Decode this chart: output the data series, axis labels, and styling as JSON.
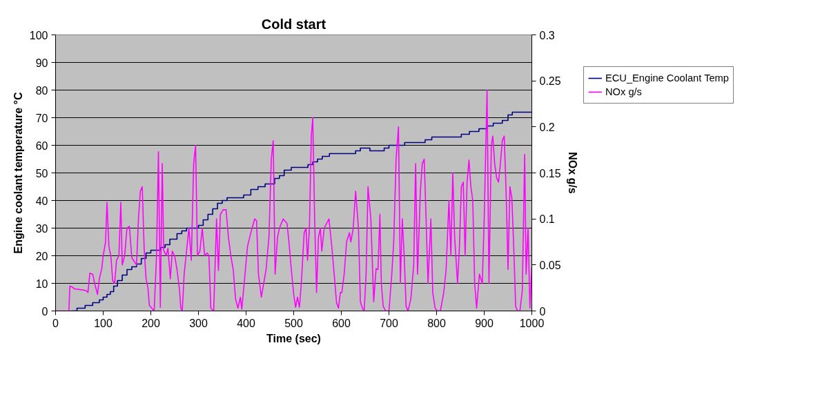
{
  "chart_data": {
    "type": "line",
    "title": "Cold start",
    "xlabel": "Time (sec)",
    "ylabel": "Engine coolant temperature °C",
    "y2label": "NOx g/s",
    "xlim": [
      0,
      1000
    ],
    "xticks": [
      0,
      100,
      200,
      300,
      400,
      500,
      600,
      700,
      800,
      900,
      1000
    ],
    "ylim": [
      0,
      100
    ],
    "yticks": [
      0,
      10,
      20,
      30,
      40,
      50,
      60,
      70,
      80,
      90,
      100
    ],
    "y2lim": [
      0,
      0.3
    ],
    "y2ticks": [
      0,
      0.05,
      0.1,
      0.15,
      0.2,
      0.25,
      0.3
    ],
    "grid": "y",
    "legend": "right",
    "series": [
      {
        "name": "ECU_Engine Coolant Temp",
        "color": "#000080",
        "type": "step",
        "x": [
          33,
          45,
          62,
          78,
          92,
          100,
          108,
          115,
          122,
          130,
          140,
          150,
          160,
          170,
          180,
          190,
          200,
          220,
          230,
          240,
          255,
          265,
          275,
          300,
          310,
          320,
          330,
          340,
          350,
          360,
          395,
          410,
          425,
          440,
          460,
          470,
          480,
          495,
          530,
          540,
          550,
          560,
          575,
          630,
          640,
          660,
          690,
          700,
          733,
          776,
          790,
          852,
          869,
          889,
          907,
          919,
          938,
          950,
          959,
          1000
        ],
        "values": [
          0,
          1,
          2,
          3,
          4,
          5,
          6,
          7,
          9,
          11,
          13,
          15,
          16,
          17,
          19,
          21,
          22,
          23,
          24,
          26,
          28,
          29,
          30,
          31,
          33,
          35,
          37,
          39,
          40,
          41,
          42,
          44,
          45,
          46,
          48,
          49,
          51,
          52,
          53,
          54,
          55,
          56,
          57,
          58,
          59,
          58,
          59,
          60,
          61,
          62,
          63,
          64,
          65,
          66,
          67,
          68,
          69,
          71,
          72,
          72
        ]
      },
      {
        "name": "NOx g/s",
        "color": "#ff00ff",
        "axis": "y2",
        "x": [
          0,
          28,
          30,
          35,
          40,
          55,
          65,
          68,
          72,
          78,
          82,
          88,
          92,
          97,
          100,
          105,
          108,
          112,
          116,
          120,
          124,
          128,
          133,
          137,
          140,
          145,
          150,
          155,
          160,
          165,
          170,
          174,
          178,
          182,
          186,
          190,
          194,
          197,
          202,
          207,
          212,
          216,
          220,
          224,
          227,
          232,
          236,
          241,
          245,
          250,
          255,
          260,
          263,
          266,
          270,
          275,
          280,
          285,
          290,
          294,
          298,
          303,
          308,
          313,
          318,
          322,
          326,
          332,
          338,
          342,
          346,
          352,
          358,
          363,
          368,
          373,
          378,
          383,
          388,
          391,
          396,
          403,
          410,
          418,
          422,
          426,
          432,
          437,
          442,
          448,
          453,
          457,
          461,
          466,
          470,
          478,
          486,
          490,
          495,
          500,
          504,
          508,
          512,
          516,
          522,
          526,
          529,
          533,
          537,
          540,
          544,
          548,
          552,
          556,
          559,
          564,
          569,
          574,
          580,
          585,
          590,
          594,
          598,
          601,
          606,
          611,
          617,
          620,
          625,
          630,
          636,
          640,
          645,
          648,
          652,
          656,
          662,
          668,
          673,
          677,
          681,
          684,
          688,
          693,
          700,
          706,
          710,
          715,
          720,
          724,
          728,
          732,
          736,
          740,
          746,
          752,
          756,
          760,
          766,
          770,
          774,
          778,
          782,
          788,
          792,
          797,
          802,
          808,
          815,
          820,
          826,
          830,
          834,
          838,
          844,
          848,
          852,
          856,
          860,
          864,
          868,
          872,
          876,
          880,
          884,
          890,
          896,
          900,
          906,
          910,
          915,
          918,
          922,
          926,
          930,
          934,
          938,
          942,
          946,
          950,
          954,
          958,
          962,
          966,
          970,
          975,
          980,
          985,
          988,
          992,
          996,
          1000
        ],
        "values": [
          0,
          0,
          0.027,
          0.026,
          0.024,
          0.023,
          0.022,
          0.02,
          0.041,
          0.04,
          0.03,
          0.018,
          0.035,
          0.046,
          0.06,
          0.075,
          0.118,
          0.07,
          0.06,
          0.033,
          0.03,
          0.055,
          0.06,
          0.118,
          0.05,
          0.06,
          0.09,
          0.092,
          0.058,
          0.054,
          0.05,
          0.1,
          0.13,
          0.135,
          0.068,
          0.035,
          0.025,
          0.006,
          0.003,
          0,
          0.06,
          0.173,
          0.004,
          0.16,
          0.066,
          0.06,
          0.068,
          0.035,
          0.065,
          0.06,
          0.045,
          0.024,
          0.003,
          0,
          0.04,
          0.065,
          0.09,
          0.055,
          0.16,
          0.18,
          0.06,
          0.065,
          0.09,
          0.06,
          0.063,
          0.06,
          0.003,
          0,
          0.1,
          0.044,
          0.105,
          0.11,
          0.11,
          0.08,
          0.06,
          0.045,
          0.013,
          0.003,
          0.015,
          0.002,
          0.03,
          0.07,
          0.085,
          0.1,
          0.098,
          0.04,
          0.015,
          0.03,
          0.045,
          0.08,
          0.165,
          0.185,
          0.04,
          0.08,
          0.09,
          0.1,
          0.095,
          0.075,
          0.045,
          0.018,
          0.004,
          0.015,
          0.004,
          0.03,
          0.085,
          0.09,
          0.055,
          0.09,
          0.19,
          0.21,
          0.1,
          0.02,
          0.08,
          0.09,
          0.065,
          0.09,
          0.095,
          0.1,
          0.07,
          0.04,
          0.009,
          0.003,
          0.02,
          0.02,
          0.04,
          0.075,
          0.085,
          0.075,
          0.09,
          0.13,
          0.09,
          0.01,
          0.002,
          0,
          0.04,
          0.135,
          0.1,
          0.01,
          0.046,
          0.045,
          0.105,
          0.03,
          0.005,
          0,
          0,
          0.04,
          0.075,
          0.165,
          0.2,
          0.03,
          0.1,
          0.06,
          0.005,
          0,
          0.013,
          0.05,
          0.16,
          0.04,
          0.13,
          0.16,
          0.165,
          0.1,
          0.03,
          0.1,
          0.02,
          0.003,
          0,
          0,
          0.02,
          0.045,
          0.12,
          0.06,
          0.15,
          0.08,
          0.03,
          0.07,
          0.135,
          0.14,
          0.06,
          0.14,
          0.164,
          0.135,
          0.12,
          0.03,
          0.003,
          0.04,
          0.03,
          0.1,
          0.24,
          0.03,
          0.18,
          0.19,
          0.16,
          0.145,
          0.14,
          0.16,
          0.185,
          0.19,
          0.13,
          0.045,
          0.135,
          0.123,
          0.07,
          0.005,
          0,
          0,
          0.022,
          0.17,
          0.04,
          0.09,
          0.003,
          0.048
        ]
      }
    ]
  }
}
